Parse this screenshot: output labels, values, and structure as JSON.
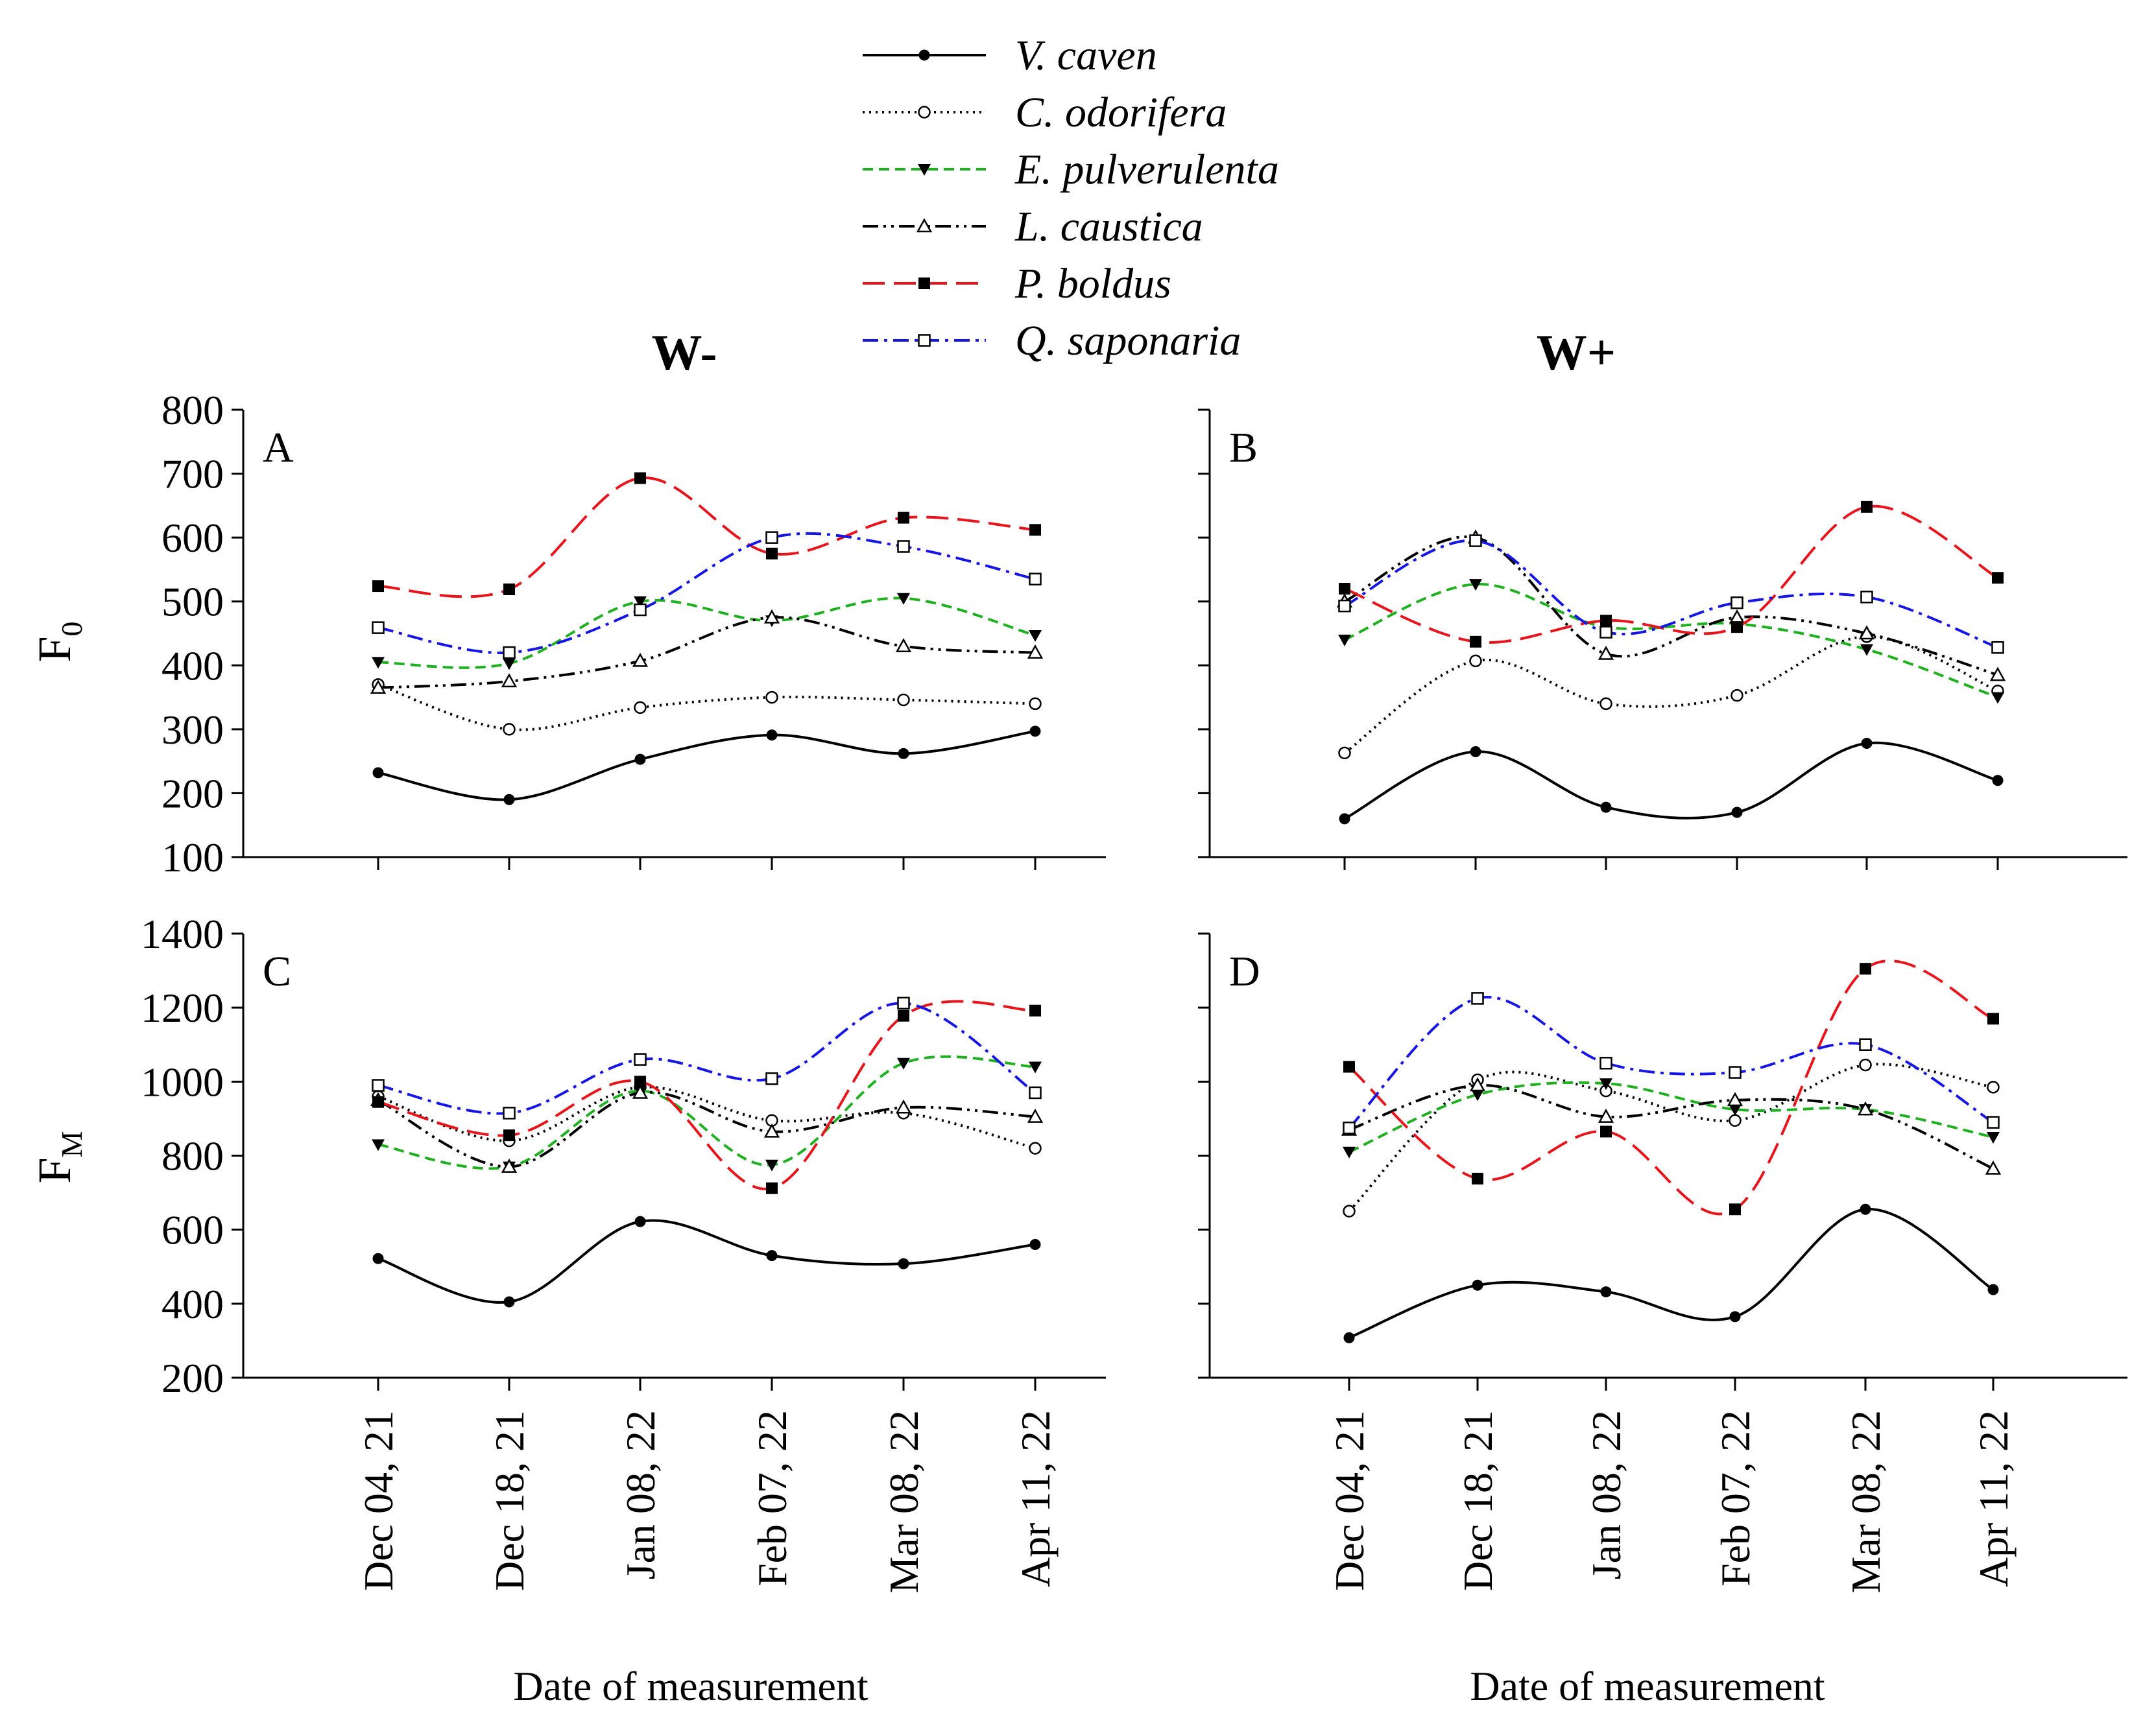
{
  "legend": [
    {
      "name": "V. caven",
      "color": "#000000",
      "dash": "solid",
      "marker": "filled-circle"
    },
    {
      "name": "C. odorifera",
      "color": "#000000",
      "dash": "dotted",
      "marker": "open-circle"
    },
    {
      "name": "E. pulverulenta",
      "color": "#1fb01f",
      "dash": "dashed",
      "marker": "filled-triangle-down"
    },
    {
      "name": "L. caustica",
      "color": "#000000",
      "dash": "dash-dot-dot",
      "marker": "open-triangle-up"
    },
    {
      "name": "P. boldus",
      "color": "#e8141b",
      "dash": "long-dash",
      "marker": "filled-square"
    },
    {
      "name": "Q. saponaria",
      "color": "#1515e6",
      "dash": "dash-dot",
      "marker": "open-square"
    }
  ],
  "column_titles": {
    "left": "W-",
    "right": "W+"
  },
  "row_labels": {
    "top": "F",
    "top_sub": "0",
    "bottom": "F",
    "bottom_sub": "M"
  },
  "xlabel": "Date of measurement",
  "chart_data": [
    {
      "type": "line",
      "panel": "A",
      "group": "W-",
      "ylabel": "F0",
      "categories": [
        "Dec 04, 21",
        "Dec 18, 21",
        "Jan 08, 22",
        "Feb 07, 22",
        "Mar 08, 22",
        "Apr 11, 22"
      ],
      "ylim": [
        100,
        800
      ],
      "yticks": [
        100,
        200,
        300,
        400,
        500,
        600,
        700,
        800
      ],
      "series": [
        {
          "name": "V. caven",
          "values": [
            232,
            190,
            253,
            291,
            262,
            297
          ]
        },
        {
          "name": "C. odorifera",
          "values": [
            370,
            300,
            334,
            350,
            346,
            340
          ]
        },
        {
          "name": "E. pulverulenta",
          "values": [
            405,
            403,
            500,
            470,
            505,
            447
          ]
        },
        {
          "name": "L. caustica",
          "values": [
            365,
            375,
            407,
            475,
            430,
            420
          ]
        },
        {
          "name": "P. boldus",
          "values": [
            524,
            519,
            693,
            575,
            631,
            612
          ]
        },
        {
          "name": "Q. saponaria",
          "values": [
            459,
            420,
            487,
            600,
            586,
            535
          ]
        }
      ]
    },
    {
      "type": "line",
      "panel": "B",
      "group": "W+",
      "ylabel": "F0",
      "categories": [
        "Dec 04, 21",
        "Dec 18, 21",
        "Jan 08, 22",
        "Feb 07, 22",
        "Mar 08, 22",
        "Apr 11, 22"
      ],
      "ylim": [
        100,
        800
      ],
      "yticks": [
        100,
        200,
        300,
        400,
        500,
        600,
        700,
        800
      ],
      "series": [
        {
          "name": "V. caven",
          "values": [
            160,
            265,
            178,
            170,
            278,
            220
          ]
        },
        {
          "name": "C. odorifera",
          "values": [
            263,
            407,
            340,
            353,
            445,
            360
          ]
        },
        {
          "name": "E. pulverulenta",
          "values": [
            440,
            527,
            460,
            465,
            425,
            350
          ]
        },
        {
          "name": "L. caustica",
          "values": [
            500,
            600,
            418,
            475,
            450,
            385
          ]
        },
        {
          "name": "P. boldus",
          "values": [
            520,
            437,
            470,
            460,
            648,
            537
          ]
        },
        {
          "name": "Q. saponaria",
          "values": [
            493,
            595,
            452,
            498,
            507,
            428
          ]
        }
      ]
    },
    {
      "type": "line",
      "panel": "C",
      "group": "W-",
      "ylabel": "FM",
      "categories": [
        "Dec 04, 21",
        "Dec 18, 21",
        "Jan 08, 22",
        "Feb 07, 22",
        "Mar 08, 22",
        "Apr 11, 22"
      ],
      "ylim": [
        200,
        1400
      ],
      "yticks": [
        200,
        400,
        600,
        800,
        1000,
        1200,
        1400
      ],
      "series": [
        {
          "name": "V. caven",
          "values": [
            522,
            405,
            622,
            530,
            508,
            560
          ]
        },
        {
          "name": "C. odorifera",
          "values": [
            960,
            840,
            985,
            895,
            915,
            820
          ]
        },
        {
          "name": "E. pulverulenta",
          "values": [
            830,
            770,
            975,
            775,
            1050,
            1040
          ]
        },
        {
          "name": "L. caustica",
          "values": [
            950,
            770,
            970,
            865,
            930,
            905
          ]
        },
        {
          "name": "P. boldus",
          "values": [
            945,
            855,
            1000,
            712,
            1178,
            1192
          ]
        },
        {
          "name": "Q. saponaria",
          "values": [
            990,
            915,
            1060,
            1008,
            1212,
            970
          ]
        }
      ]
    },
    {
      "type": "line",
      "panel": "D",
      "group": "W+",
      "ylabel": "FM",
      "categories": [
        "Dec 04, 21",
        "Dec 18, 21",
        "Jan 08, 22",
        "Feb 07, 22",
        "Mar 08, 22",
        "Apr 11, 22"
      ],
      "ylim": [
        200,
        1400
      ],
      "yticks": [
        200,
        400,
        600,
        800,
        1000,
        1200,
        1400
      ],
      "series": [
        {
          "name": "V. caven",
          "values": [
            308,
            450,
            432,
            365,
            655,
            438
          ]
        },
        {
          "name": "C. odorifera",
          "values": [
            650,
            1005,
            975,
            895,
            1045,
            985
          ]
        },
        {
          "name": "E. pulverulenta",
          "values": [
            810,
            965,
            995,
            925,
            925,
            850
          ]
        },
        {
          "name": "L. caustica",
          "values": [
            870,
            990,
            905,
            950,
            925,
            765
          ]
        },
        {
          "name": "P. boldus",
          "values": [
            1040,
            738,
            865,
            655,
            1305,
            1170
          ]
        },
        {
          "name": "Q. saponaria",
          "values": [
            875,
            1225,
            1050,
            1025,
            1100,
            890
          ]
        }
      ]
    }
  ]
}
